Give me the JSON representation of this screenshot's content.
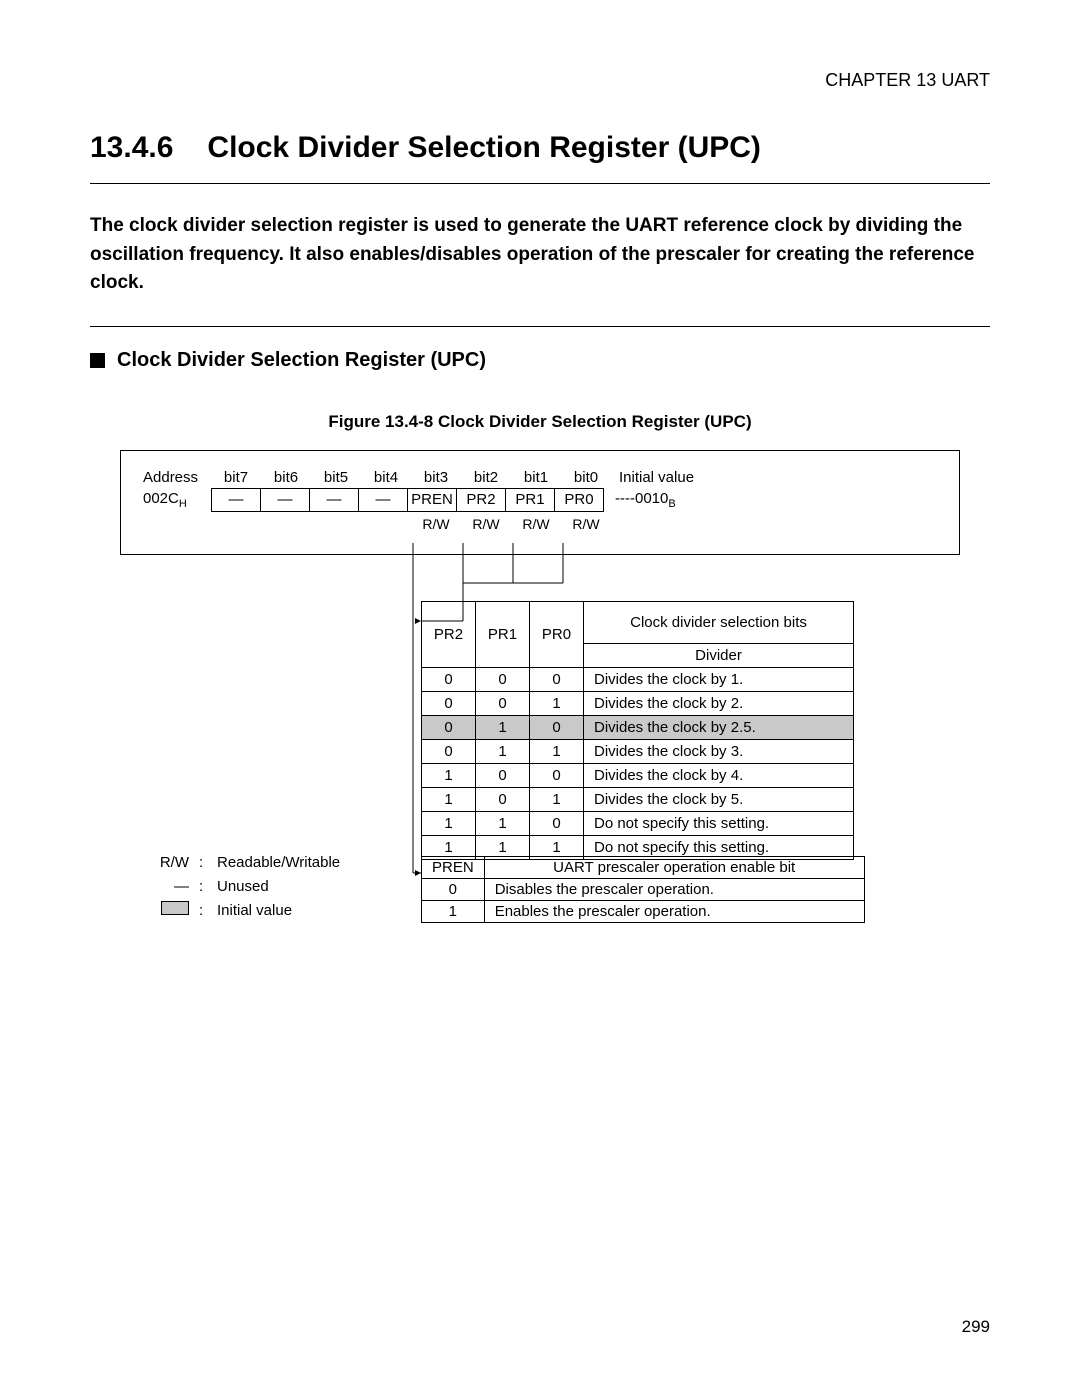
{
  "chapter": "CHAPTER 13  UART",
  "section_number": "13.4.6",
  "section_title": "Clock Divider Selection Register (UPC)",
  "intro": "The clock divider selection register is used to generate the UART reference clock by dividing the oscillation frequency. It also enables/disables operation of the prescaler for creating the reference clock.",
  "subhead": "Clock Divider Selection Register (UPC)",
  "figure_caption": "Figure 13.4-8  Clock Divider Selection Register (UPC)",
  "bit_header": {
    "address_label": "Address",
    "bits": [
      "bit7",
      "bit6",
      "bit5",
      "bit4",
      "bit3",
      "bit2",
      "bit1",
      "bit0"
    ],
    "initial_label": "Initial value"
  },
  "register_row": {
    "address": "002C",
    "address_sub": "H",
    "cells": [
      "—",
      "—",
      "—",
      "—",
      "PREN",
      "PR2",
      "PR1",
      "PR0"
    ],
    "initial_value": "----0010",
    "initial_sub": "B"
  },
  "rw_row": [
    "R/W",
    "R/W",
    "R/W",
    "R/W"
  ],
  "pr_table": {
    "headers": [
      "PR2",
      "PR1",
      "PR0"
    ],
    "title_top": "Clock divider selection bits",
    "title_bottom": "Divider",
    "rows": [
      {
        "v": [
          "0",
          "0",
          "0"
        ],
        "d": "Divides the clock by 1.",
        "hl": false
      },
      {
        "v": [
          "0",
          "0",
          "1"
        ],
        "d": "Divides the clock by 2.",
        "hl": false
      },
      {
        "v": [
          "0",
          "1",
          "0"
        ],
        "d": "Divides the clock by 2.5.",
        "hl": true
      },
      {
        "v": [
          "0",
          "1",
          "1"
        ],
        "d": "Divides the clock by 3.",
        "hl": false
      },
      {
        "v": [
          "1",
          "0",
          "0"
        ],
        "d": "Divides the clock by 4.",
        "hl": false
      },
      {
        "v": [
          "1",
          "0",
          "1"
        ],
        "d": "Divides the clock by 5.",
        "hl": false
      },
      {
        "v": [
          "1",
          "1",
          "0"
        ],
        "d": "Do not specify this setting.",
        "hl": false
      },
      {
        "v": [
          "1",
          "1",
          "1"
        ],
        "d": "Do not specify this setting.",
        "hl": false
      }
    ]
  },
  "legend": {
    "rw_sym": "R/W",
    "rw_txt": "Readable/Writable",
    "dash_sym": "—",
    "dash_txt": "Unused",
    "gray_txt": "Initial value"
  },
  "pren_table": {
    "head0": "PREN",
    "head1": "UART prescaler operation enable bit",
    "rows": [
      {
        "v": "0",
        "d": "Disables the prescaler operation."
      },
      {
        "v": "1",
        "d": "Enables the prescaler operation."
      }
    ]
  },
  "page_number": "299",
  "colors": {
    "highlight": "#c9c9c9",
    "line": "#000000",
    "background": "#ffffff"
  }
}
